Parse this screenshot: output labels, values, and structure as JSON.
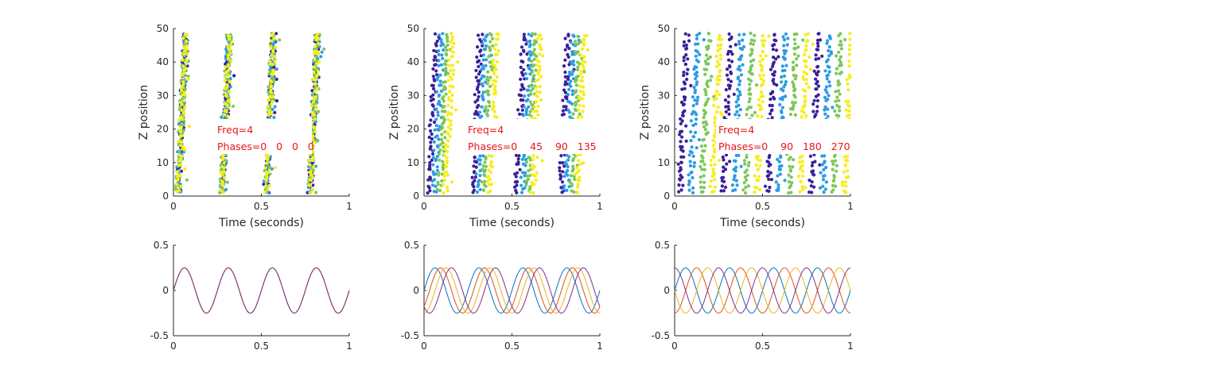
{
  "colors": {
    "axis": "#262626",
    "annotation": "#e8141c",
    "raster": [
      "#3b1f9a",
      "#2b9be6",
      "#7cc75a",
      "#f6ee1a"
    ],
    "waves": [
      "#0072BD",
      "#D95319",
      "#EDB120",
      "#7E2F8E"
    ]
  },
  "chart_data": [
    {
      "type": "scatter",
      "panel": "raster-1",
      "xlabel": "Time (seconds)",
      "ylabel": "Z position",
      "xlim": [
        0,
        1
      ],
      "ylim": [
        0,
        50
      ],
      "xticks": [
        "0",
        "0.5",
        "1"
      ],
      "yticks": [
        "0",
        "10",
        "20",
        "30",
        "40",
        "50"
      ],
      "frequency": 4,
      "phases_deg": [
        0,
        0,
        0,
        0
      ],
      "annotation": [
        "Freq=4",
        "Phases=0   0   0   0"
      ],
      "grid": false
    },
    {
      "type": "scatter",
      "panel": "raster-2",
      "xlabel": "Time (seconds)",
      "ylabel": "Z position",
      "xlim": [
        0,
        1
      ],
      "ylim": [
        0,
        50
      ],
      "xticks": [
        "0",
        "0.5",
        "1"
      ],
      "yticks": [
        "0",
        "10",
        "20",
        "30",
        "40",
        "50"
      ],
      "frequency": 4,
      "phases_deg": [
        0,
        45,
        90,
        135
      ],
      "annotation": [
        "Freq=4",
        "Phases=0    45    90   135"
      ],
      "grid": false
    },
    {
      "type": "scatter",
      "panel": "raster-3",
      "xlabel": "Time (seconds)",
      "ylabel": "Z position",
      "xlim": [
        0,
        1
      ],
      "ylim": [
        0,
        50
      ],
      "xticks": [
        "0",
        "0.5",
        "1"
      ],
      "yticks": [
        "0",
        "10",
        "20",
        "30",
        "40",
        "50"
      ],
      "frequency": 4,
      "phases_deg": [
        0,
        90,
        180,
        270
      ],
      "annotation": [
        "Freq=4",
        "Phases=0    90   180   270"
      ],
      "grid": false
    },
    {
      "type": "line",
      "panel": "wave-1",
      "xlim": [
        0,
        1
      ],
      "ylim": [
        -0.5,
        0.5
      ],
      "xticks": [
        "0",
        "0.5",
        "1"
      ],
      "yticks": [
        "-0.5",
        "0",
        "0.5"
      ],
      "amplitude": 0.25,
      "frequency": 4,
      "phases_deg": [
        0,
        0,
        0,
        0
      ],
      "grid": false
    },
    {
      "type": "line",
      "panel": "wave-2",
      "xlim": [
        0,
        1
      ],
      "ylim": [
        -0.5,
        0.5
      ],
      "xticks": [
        "0",
        "0.5",
        "1"
      ],
      "yticks": [
        "-0.5",
        "0",
        "0.5"
      ],
      "amplitude": 0.25,
      "frequency": 4,
      "phases_deg": [
        0,
        45,
        90,
        135
      ],
      "grid": false
    },
    {
      "type": "line",
      "panel": "wave-3",
      "xlim": [
        0,
        1
      ],
      "ylim": [
        -0.5,
        0.5
      ],
      "xticks": [
        "0",
        "0.5",
        "1"
      ],
      "yticks": [
        "-0.5",
        "0",
        "0.5"
      ],
      "amplitude": 0.25,
      "frequency": 4,
      "phases_deg": [
        0,
        90,
        180,
        270
      ],
      "grid": false
    }
  ]
}
